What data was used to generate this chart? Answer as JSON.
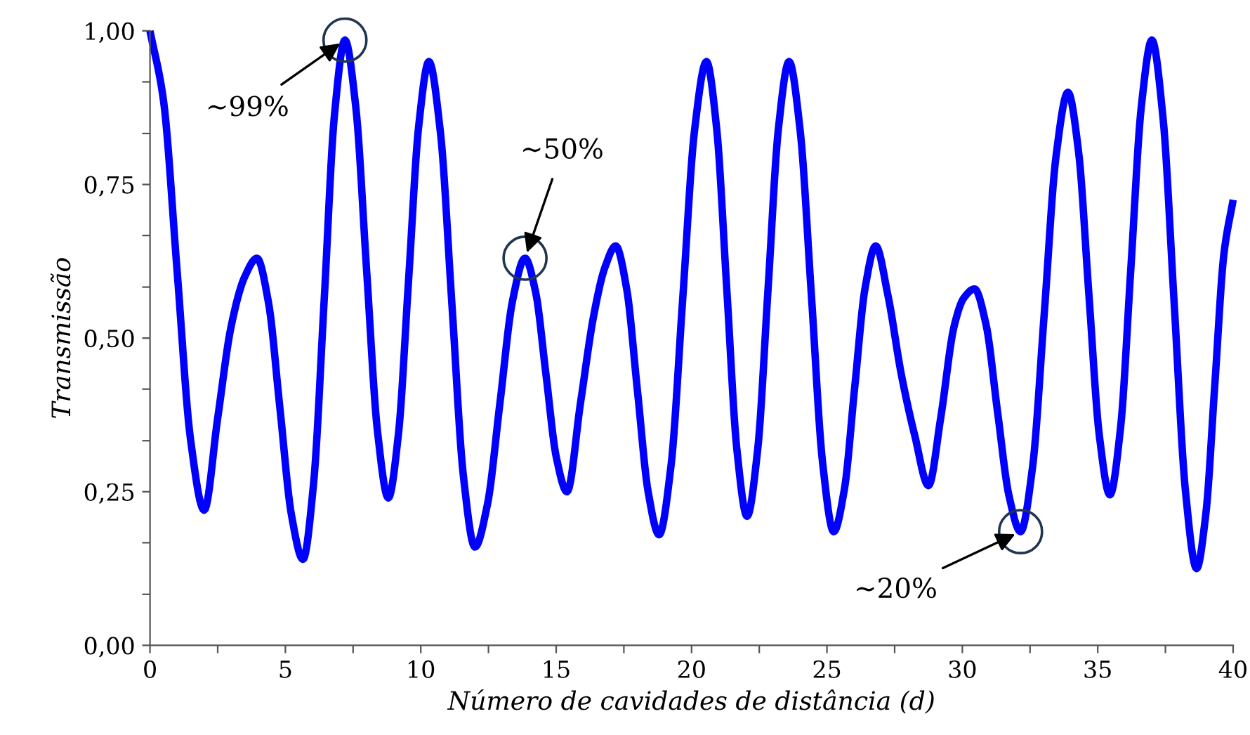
{
  "chart_data": {
    "type": "line",
    "xlabel": "Número de cavidades de distância (d)",
    "ylabel": "Transmissão",
    "x": [
      0,
      0.5,
      1.0,
      1.5,
      2.0,
      2.5,
      3.0,
      3.5,
      3.95,
      4.375,
      4.8,
      5.225,
      5.65,
      6.04,
      6.43,
      6.81,
      7.2,
      7.6,
      8.0,
      8.4,
      8.8,
      9.175,
      9.55,
      9.925,
      10.3,
      10.725,
      11.15,
      11.575,
      12.0,
      12.46,
      12.925,
      13.39,
      13.85,
      14.24,
      14.625,
      15.01,
      15.4,
      15.9,
      16.4,
      16.8,
      17.2,
      17.6,
      18.0,
      18.4,
      18.8,
      19.24,
      19.675,
      20.11,
      20.55,
      20.925,
      21.3,
      21.675,
      22.05,
      22.44,
      22.825,
      23.21,
      23.6,
      24.01,
      24.425,
      24.84,
      25.25,
      25.64,
      26.025,
      26.41,
      26.8,
      27.25,
      27.75,
      28.25,
      28.75,
      29.2,
      29.7,
      30.05,
      30.45,
      30.875,
      31.3,
      31.725,
      32.15,
      32.59,
      33.025,
      33.46,
      33.9,
      34.29,
      34.675,
      35.06,
      35.45,
      35.84,
      36.225,
      36.61,
      37.0,
      37.41,
      37.825,
      38.24,
      38.65,
      38.99,
      39.325,
      39.66,
      40.0
    ],
    "series": [
      {
        "color": "#0000ff",
        "values": [
          1.0,
          0.886,
          0.61,
          0.334,
          0.22,
          0.37,
          0.52,
          0.6,
          0.63,
          0.558,
          0.385,
          0.212,
          0.14,
          0.263,
          0.56,
          0.862,
          0.985,
          0.876,
          0.61,
          0.349,
          0.24,
          0.344,
          0.595,
          0.846,
          0.95,
          0.835,
          0.555,
          0.275,
          0.16,
          0.229,
          0.395,
          0.561,
          0.63,
          0.575,
          0.44,
          0.305,
          0.25,
          0.395,
          0.54,
          0.615,
          0.65,
          0.581,
          0.415,
          0.249,
          0.18,
          0.292,
          0.565,
          0.838,
          0.95,
          0.842,
          0.58,
          0.318,
          0.21,
          0.318,
          0.58,
          0.842,
          0.95,
          0.838,
          0.57,
          0.297,
          0.185,
          0.253,
          0.42,
          0.582,
          0.65,
          0.57,
          0.44,
          0.34,
          0.26,
          0.37,
          0.52,
          0.565,
          0.58,
          0.522,
          0.38,
          0.243,
          0.185,
          0.289,
          0.54,
          0.796,
          0.9,
          0.804,
          0.57,
          0.341,
          0.245,
          0.353,
          0.615,
          0.877,
          0.985,
          0.859,
          0.555,
          0.251,
          0.125,
          0.213,
          0.425,
          0.637,
          0.725
        ]
      }
    ],
    "xlim": [
      0,
      40
    ],
    "ylim": [
      0,
      1.0
    ],
    "xticks": [
      0,
      {
        "value": 2.5,
        "label": null
      },
      5,
      {
        "value": 7.5,
        "label": null
      },
      10,
      {
        "value": 12.5,
        "label": null
      },
      15,
      {
        "value": 17.5,
        "label": null
      },
      20,
      {
        "value": 22.5,
        "label": null
      },
      25,
      {
        "value": 27.5,
        "label": null
      },
      30,
      {
        "value": 32.5,
        "label": null
      },
      35,
      {
        "value": 37.5,
        "label": null
      },
      40
    ],
    "yticks": [
      {
        "value": 0,
        "label": "0,00"
      },
      {
        "value": 0.083,
        "label": null
      },
      {
        "value": 0.167,
        "label": null
      },
      {
        "value": 0.25,
        "label": "0,25"
      },
      {
        "value": 0.333,
        "label": null
      },
      {
        "value": 0.417,
        "label": null
      },
      {
        "value": 0.5,
        "label": "0,50"
      },
      {
        "value": 0.583,
        "label": null
      },
      {
        "value": 0.667,
        "label": null
      },
      {
        "value": 0.75,
        "label": "0,75"
      },
      {
        "value": 0.833,
        "label": null
      },
      {
        "value": 0.917,
        "label": null
      },
      {
        "value": 1.0,
        "label": "1,00"
      }
    ],
    "annotations": [
      {
        "text": "∼99%",
        "x": 7.2,
        "y": 0.985
      },
      {
        "text": "∼50%",
        "x": 13.85,
        "y": 0.63
      },
      {
        "text": "∼20%",
        "x": 32.15,
        "y": 0.185
      }
    ],
    "grid": false,
    "legend": false,
    "marker": "none",
    "line_style": "solid"
  }
}
